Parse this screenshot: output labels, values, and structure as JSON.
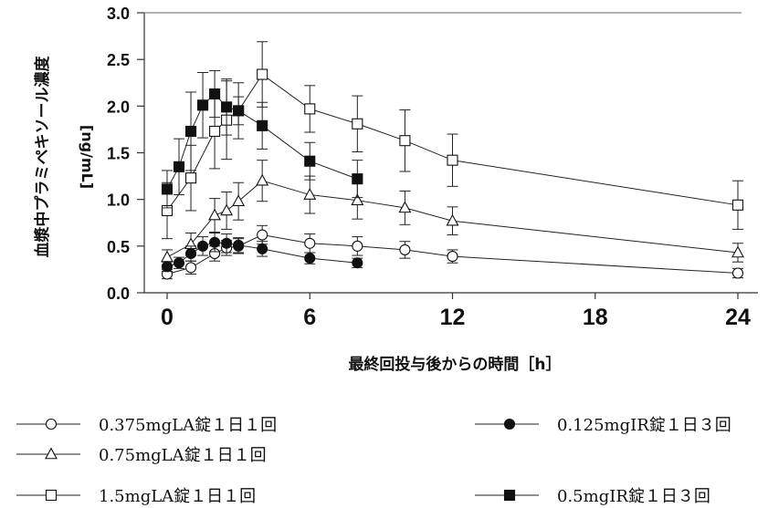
{
  "chart_data": {
    "type": "line",
    "xlabel": "最終回投与後からの時間［h］",
    "ylabel_main": "血漿中プラミペキソール濃度",
    "ylabel_unit": "[ng/mL]",
    "xlim": [
      0,
      24
    ],
    "ylim": [
      0,
      3.0
    ],
    "x_ticks": [
      0,
      6,
      12,
      18,
      24
    ],
    "x_tick_labels": [
      "0",
      "6",
      "12",
      "18",
      "24"
    ],
    "y_ticks": [
      0,
      0.5,
      1.0,
      1.5,
      2.0,
      2.5,
      3.0
    ],
    "y_tick_labels": [
      "0.0",
      "0.5",
      "1.0",
      "1.5",
      "2.0",
      "2.5",
      "3.0"
    ],
    "series": [
      {
        "name": "0.375mgLA錠１日１回",
        "marker": "circle-open",
        "x": [
          0,
          1,
          2,
          2.5,
          3,
          4,
          6,
          8,
          10,
          12,
          24
        ],
        "y": [
          0.2,
          0.27,
          0.42,
          0.48,
          0.5,
          0.62,
          0.53,
          0.5,
          0.46,
          0.39,
          0.21
        ],
        "err": [
          0.05,
          0.07,
          0.08,
          0.08,
          0.08,
          0.1,
          0.1,
          0.1,
          0.09,
          0.07,
          0.05
        ]
      },
      {
        "name": "0.75mgLA錠１日１回",
        "marker": "triangle-open",
        "x": [
          0,
          1,
          2,
          2.5,
          3,
          4,
          6,
          8,
          10,
          12,
          24
        ],
        "y": [
          0.38,
          0.52,
          0.83,
          0.88,
          0.98,
          1.2,
          1.05,
          0.99,
          0.91,
          0.77,
          0.43
        ],
        "err": [
          0.08,
          0.12,
          0.18,
          0.2,
          0.2,
          0.22,
          0.2,
          0.2,
          0.18,
          0.15,
          0.1
        ]
      },
      {
        "name": "1.5mgLA錠１日１回",
        "marker": "square-open",
        "x": [
          0,
          1,
          2,
          2.5,
          3,
          4,
          6,
          8,
          10,
          12,
          24
        ],
        "y": [
          0.88,
          1.23,
          1.73,
          1.85,
          1.95,
          2.34,
          1.97,
          1.81,
          1.63,
          1.42,
          0.94
        ],
        "err": [
          0.3,
          0.35,
          0.4,
          0.42,
          0.3,
          0.35,
          0.25,
          0.3,
          0.33,
          0.28,
          0.26
        ]
      },
      {
        "name": "0.125mgIR錠１日３回",
        "marker": "circle-filled",
        "x": [
          0,
          0.5,
          1,
          1.5,
          2,
          2.5,
          3,
          4,
          6,
          8
        ],
        "y": [
          0.28,
          0.32,
          0.42,
          0.5,
          0.54,
          0.53,
          0.51,
          0.47,
          0.37,
          0.32
        ],
        "err": [
          0.05,
          0.06,
          0.08,
          0.1,
          0.1,
          0.1,
          0.08,
          0.08,
          0.06,
          0.05
        ]
      },
      {
        "name": "0.5mgIR錠１日３回",
        "marker": "square-filled",
        "x": [
          0,
          0.5,
          1,
          1.5,
          2,
          2.5,
          3,
          4,
          6,
          8
        ],
        "y": [
          1.11,
          1.35,
          1.73,
          2.01,
          2.13,
          1.99,
          1.95,
          1.79,
          1.41,
          1.22
        ],
        "err": [
          0.2,
          0.3,
          0.42,
          0.35,
          0.25,
          0.3,
          0.15,
          0.25,
          0.2,
          0.2
        ]
      }
    ],
    "legend": [
      {
        "label": "0.375mgLA錠１日１回",
        "marker": "circle-open"
      },
      {
        "label": "0.125mgIR錠１日３回",
        "marker": "circle-filled"
      },
      {
        "label": "0.75mgLA錠１日１回",
        "marker": "triangle-open"
      },
      {
        "label": "1.5mgLA錠１日１回",
        "marker": "square-open"
      },
      {
        "label": "0.5mgIR錠１日３回",
        "marker": "square-filled"
      }
    ]
  }
}
